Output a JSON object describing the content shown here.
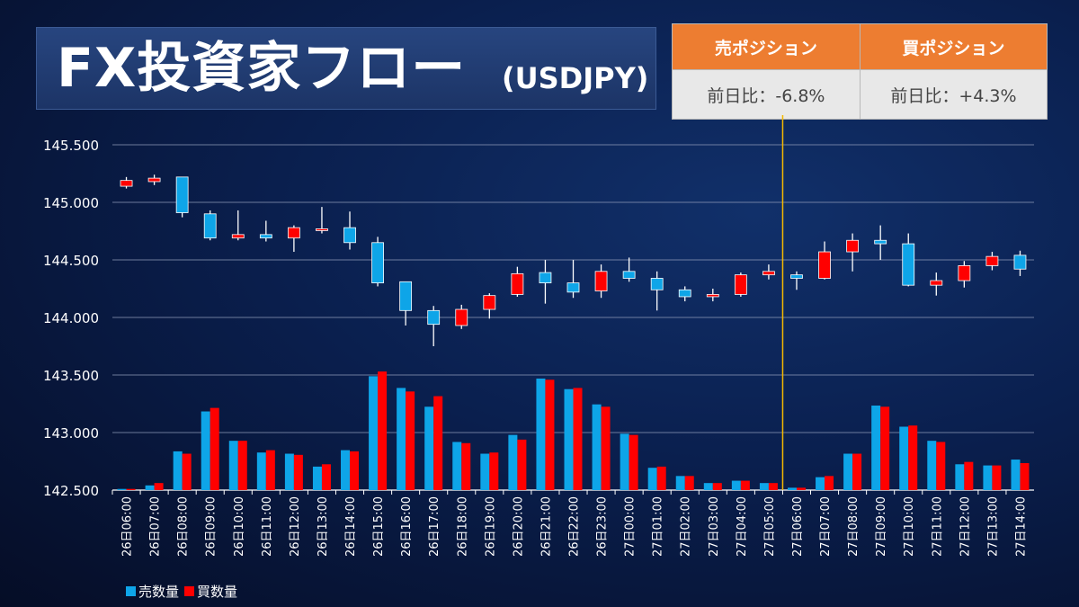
{
  "header": {
    "title": "FX投資家フロー",
    "subtitle": "(USDJPY)"
  },
  "position_table": {
    "sell_label": "売ポジション",
    "buy_label": "買ポジション",
    "sell_change": "前日比：-6.8%",
    "buy_change": "前日比：+4.3%"
  },
  "colors": {
    "sell": "#0ea5e8",
    "buy": "#ff0000",
    "accent": "#ed7d31",
    "marker": "#f5b800"
  },
  "chart_data": {
    "type": "candlestick+bar",
    "categories": [
      "26日06:00",
      "26日07:00",
      "26日08:00",
      "26日09:00",
      "26日10:00",
      "26日11:00",
      "26日12:00",
      "26日13:00",
      "26日14:00",
      "26日15:00",
      "26日16:00",
      "26日17:00",
      "26日18:00",
      "26日19:00",
      "26日20:00",
      "26日21:00",
      "26日22:00",
      "26日23:00",
      "27日00:00",
      "27日01:00",
      "27日02:00",
      "27日03:00",
      "27日04:00",
      "27日05:00",
      "27日06:00",
      "27日07:00",
      "27日08:00",
      "27日09:00",
      "27日10:00",
      "27日11:00",
      "27日12:00",
      "27日13:00",
      "27日14:00"
    ],
    "y_ticks": [
      "145.500",
      "145.000",
      "144.500",
      "144.000",
      "143.500",
      "143.000",
      "142.500"
    ],
    "ylim": [
      142.5,
      145.5
    ],
    "grid": true,
    "candles": [
      {
        "open": 145.14,
        "high": 145.22,
        "low": 145.12,
        "close": 145.19
      },
      {
        "open": 145.18,
        "high": 145.24,
        "low": 145.15,
        "close": 145.21
      },
      {
        "open": 145.22,
        "high": 145.22,
        "low": 144.87,
        "close": 144.91
      },
      {
        "open": 144.9,
        "high": 144.93,
        "low": 144.67,
        "close": 144.69
      },
      {
        "open": 144.69,
        "high": 144.93,
        "low": 144.67,
        "close": 144.72
      },
      {
        "open": 144.72,
        "high": 144.84,
        "low": 144.66,
        "close": 144.69
      },
      {
        "open": 144.69,
        "high": 144.8,
        "low": 144.57,
        "close": 144.78
      },
      {
        "open": 144.77,
        "high": 144.96,
        "low": 144.73,
        "close": 144.77
      },
      {
        "open": 144.78,
        "high": 144.92,
        "low": 144.59,
        "close": 144.65
      },
      {
        "open": 144.65,
        "high": 144.7,
        "low": 144.27,
        "close": 144.3
      },
      {
        "open": 144.31,
        "high": 144.31,
        "low": 143.93,
        "close": 144.06
      },
      {
        "open": 144.06,
        "high": 144.1,
        "low": 143.75,
        "close": 143.94
      },
      {
        "open": 143.93,
        "high": 144.11,
        "low": 143.9,
        "close": 144.07
      },
      {
        "open": 144.07,
        "high": 144.21,
        "low": 143.99,
        "close": 144.19
      },
      {
        "open": 144.2,
        "high": 144.44,
        "low": 144.18,
        "close": 144.38
      },
      {
        "open": 144.39,
        "high": 144.5,
        "low": 144.12,
        "close": 144.3
      },
      {
        "open": 144.3,
        "high": 144.5,
        "low": 144.17,
        "close": 144.22
      },
      {
        "open": 144.23,
        "high": 144.46,
        "low": 144.17,
        "close": 144.4
      },
      {
        "open": 144.4,
        "high": 144.52,
        "low": 144.31,
        "close": 144.34
      },
      {
        "open": 144.34,
        "high": 144.4,
        "low": 144.06,
        "close": 144.24
      },
      {
        "open": 144.24,
        "high": 144.27,
        "low": 144.14,
        "close": 144.18
      },
      {
        "open": 144.18,
        "high": 144.25,
        "low": 144.14,
        "close": 144.2
      },
      {
        "open": 144.2,
        "high": 144.39,
        "low": 144.18,
        "close": 144.37
      },
      {
        "open": 144.37,
        "high": 144.46,
        "low": 144.33,
        "close": 144.4
      },
      {
        "open": 144.37,
        "high": 144.4,
        "low": 144.24,
        "close": 144.34
      },
      {
        "open": 144.34,
        "high": 144.66,
        "low": 144.33,
        "close": 144.57
      },
      {
        "open": 144.57,
        "high": 144.73,
        "low": 144.4,
        "close": 144.67
      },
      {
        "open": 144.67,
        "high": 144.8,
        "low": 144.5,
        "close": 144.64
      },
      {
        "open": 144.64,
        "high": 144.73,
        "low": 144.27,
        "close": 144.28
      },
      {
        "open": 144.28,
        "high": 144.39,
        "low": 144.19,
        "close": 144.32
      },
      {
        "open": 144.32,
        "high": 144.49,
        "low": 144.26,
        "close": 144.45
      },
      {
        "open": 144.45,
        "high": 144.57,
        "low": 144.41,
        "close": 144.53
      },
      {
        "open": 144.54,
        "high": 144.58,
        "low": 144.36,
        "close": 144.42
      }
    ],
    "volume_series": [
      {
        "name": "売数量",
        "values": [
          0.01,
          0.04,
          0.33,
          0.67,
          0.42,
          0.32,
          0.31,
          0.2,
          0.34,
          0.97,
          0.87,
          0.71,
          0.41,
          0.31,
          0.47,
          0.95,
          0.86,
          0.73,
          0.48,
          0.19,
          0.12,
          0.06,
          0.08,
          0.06,
          0.02,
          0.11,
          0.31,
          0.72,
          0.54,
          0.42,
          0.22,
          0.21,
          0.26
        ]
      },
      {
        "name": "買数量",
        "values": [
          0.01,
          0.06,
          0.31,
          0.7,
          0.42,
          0.34,
          0.3,
          0.22,
          0.33,
          1.01,
          0.84,
          0.8,
          0.4,
          0.32,
          0.43,
          0.94,
          0.87,
          0.71,
          0.47,
          0.2,
          0.12,
          0.06,
          0.08,
          0.06,
          0.02,
          0.12,
          0.31,
          0.71,
          0.55,
          0.41,
          0.24,
          0.21,
          0.23
        ]
      }
    ],
    "marker_after_category": "27日05:00"
  },
  "legend": {
    "sell": "売数量",
    "buy": "買数量"
  }
}
